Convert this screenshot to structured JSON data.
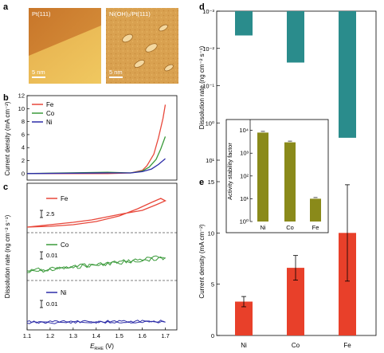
{
  "images": {
    "a_left_label": "Pt(111)",
    "a_right_label": "Ni(OH)₂/Pt(111)",
    "scale_bar_left": "5 nm",
    "scale_bar_right": "5 nm"
  },
  "panel_labels": {
    "a": "a",
    "b": "b",
    "c": "c",
    "d": "d",
    "e": "e",
    "f": "f"
  },
  "colors": {
    "Fe": "#e8473a",
    "Co": "#3a9a3a",
    "Ni": "#2c2ca8",
    "bar_teal": "#2a8c8c",
    "bar_red": "#e8402a",
    "bar_olive": "#8a8a1a"
  },
  "chart_data": [
    {
      "id": "b",
      "type": "line",
      "xlabel": "",
      "ylabel": "Current density (mA cm⁻²)",
      "xlim": [
        1.1,
        1.75
      ],
      "ylim": [
        -1,
        12
      ],
      "yticks": [
        "0",
        "2",
        "4",
        "6",
        "8",
        "10",
        "12"
      ],
      "legend": [
        "Fe",
        "Co",
        "Ni"
      ],
      "legend_position": "top-left",
      "series": [
        {
          "name": "Fe",
          "x": [
            1.1,
            1.45,
            1.55,
            1.6,
            1.62,
            1.65,
            1.67,
            1.69,
            1.7
          ],
          "y": [
            0,
            0,
            0.1,
            0.5,
            1.2,
            3.0,
            5.5,
            8.5,
            10.6
          ]
        },
        {
          "name": "Co",
          "x": [
            1.1,
            1.45,
            1.55,
            1.6,
            1.63,
            1.66,
            1.68,
            1.7
          ],
          "y": [
            0,
            0.2,
            0.1,
            0.4,
            1.0,
            2.2,
            3.8,
            5.7
          ]
        },
        {
          "name": "Ni",
          "x": [
            1.1,
            1.45,
            1.55,
            1.6,
            1.64,
            1.67,
            1.7
          ],
          "y": [
            0,
            0.1,
            0.1,
            0.3,
            0.7,
            1.4,
            2.3
          ]
        }
      ]
    },
    {
      "id": "c",
      "type": "line",
      "xlabel": "E_RHE (V)",
      "ylabel": "Dissolution rate (ng cm⁻² s⁻¹)",
      "xlim": [
        1.1,
        1.75
      ],
      "xticks": [
        "1.1",
        "1.2",
        "1.3",
        "1.4",
        "1.5",
        "1.6",
        "1.7"
      ],
      "subpanels": [
        {
          "name": "Fe",
          "scale_label": "2.5"
        },
        {
          "name": "Co",
          "scale_label": "0.01"
        },
        {
          "name": "Ni",
          "scale_label": "0.01"
        }
      ]
    },
    {
      "id": "d",
      "type": "bar",
      "categories": [
        "Ni",
        "Co",
        "Fe"
      ],
      "values": [
        0.0045,
        0.024,
        2.5
      ],
      "ylabel": "Dissolution rate (ng cm⁻² s⁻¹)",
      "yscale": "log",
      "ylim": [
        10,
        0.001
      ],
      "yticks": [
        "10⁻³",
        "10⁻²",
        "10⁻¹",
        "10⁰",
        "10¹"
      ]
    },
    {
      "id": "e",
      "type": "bar",
      "categories": [
        "Ni",
        "Co",
        "Fe"
      ],
      "values": [
        3.3,
        6.6,
        10.0
      ],
      "errors": [
        0.5,
        1.2,
        4.7
      ],
      "ylabel": "Current density (mA cm⁻²)",
      "ylim": [
        0,
        15
      ],
      "yticks": [
        "0",
        "5",
        "10",
        "15"
      ]
    },
    {
      "id": "f",
      "type": "bar",
      "categories": [
        "Ni",
        "Co",
        "Fe"
      ],
      "values": [
        8000,
        3000,
        10
      ],
      "ylabel": "Activity stability factor",
      "yscale": "log",
      "ylim": [
        1,
        30000
      ],
      "yticks": [
        "10⁰",
        "10¹",
        "10²",
        "10³",
        "10⁴"
      ]
    }
  ]
}
